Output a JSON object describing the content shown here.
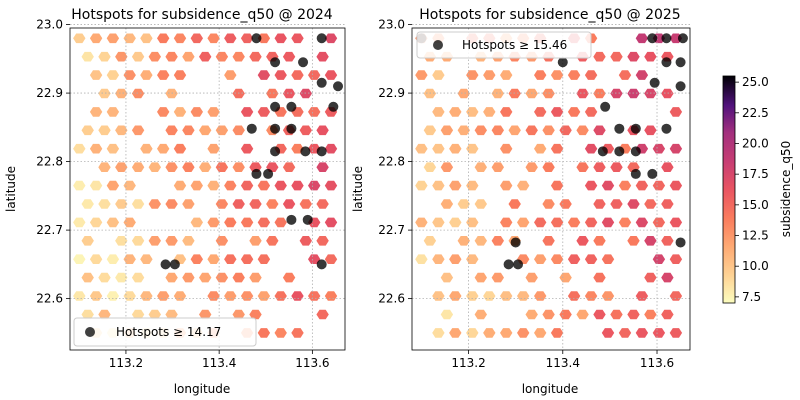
{
  "chart_data": {
    "type": "heatmap",
    "colorbar": {
      "label": "subsidence_q50",
      "range": [
        7.0,
        25.5
      ],
      "ticks": [
        "7.5",
        "10.0",
        "12.5",
        "15.0",
        "17.5",
        "20.0",
        "22.5",
        "25.0"
      ],
      "tick_values": [
        7.5,
        10.0,
        12.5,
        15.0,
        17.5,
        20.0,
        22.5,
        25.0
      ],
      "colormap": "magma_r"
    },
    "panels": [
      {
        "title": "Hotspots for subsidence_q50 @ 2024",
        "xlabel": "longitude",
        "ylabel": "latitude",
        "xlim": [
          113.08,
          113.67
        ],
        "ylim": [
          22.525,
          22.995
        ],
        "x_ticks": [
          "113.2",
          "113.4",
          "113.6"
        ],
        "x_tick_values": [
          113.2,
          113.4,
          113.6
        ],
        "y_ticks": [
          "22.6",
          "22.7",
          "22.8",
          "22.9",
          "23.0"
        ],
        "y_tick_values": [
          22.6,
          22.7,
          22.8,
          22.9,
          23.0
        ],
        "grid": true,
        "legend": {
          "label": "Hotspots ≥ 14.17",
          "position": "lower-left"
        },
        "hotspot_threshold": 14.17,
        "seed": 2024,
        "hotspots": [
          [
            113.48,
            22.98
          ],
          [
            113.62,
            22.98
          ],
          [
            113.52,
            22.945
          ],
          [
            113.58,
            22.945
          ],
          [
            113.62,
            22.915
          ],
          [
            113.655,
            22.91
          ],
          [
            113.52,
            22.88
          ],
          [
            113.555,
            22.88
          ],
          [
            113.645,
            22.88
          ],
          [
            113.47,
            22.848
          ],
          [
            113.52,
            22.848
          ],
          [
            113.555,
            22.848
          ],
          [
            113.52,
            22.815
          ],
          [
            113.585,
            22.815
          ],
          [
            113.62,
            22.815
          ],
          [
            113.48,
            22.782
          ],
          [
            113.505,
            22.782
          ],
          [
            113.555,
            22.715
          ],
          [
            113.59,
            22.715
          ],
          [
            113.285,
            22.65
          ],
          [
            113.305,
            22.65
          ],
          [
            113.62,
            22.65
          ]
        ]
      },
      {
        "title": "Hotspots for subsidence_q50 @ 2025",
        "xlabel": "longitude",
        "ylabel": "latitude",
        "xlim": [
          113.08,
          113.67
        ],
        "ylim": [
          22.525,
          22.995
        ],
        "x_ticks": [
          "113.2",
          "113.4",
          "113.6"
        ],
        "x_tick_values": [
          113.2,
          113.4,
          113.6
        ],
        "y_ticks": [
          "22.6",
          "22.7",
          "22.8",
          "22.9",
          "23.0"
        ],
        "y_tick_values": [
          22.6,
          22.7,
          22.8,
          22.9,
          23.0
        ],
        "grid": true,
        "legend": {
          "label": "Hotspots ≥ 15.46",
          "position": "upper-left"
        },
        "hotspot_threshold": 15.46,
        "seed": 2025,
        "hotspots": [
          [
            113.1,
            22.98
          ],
          [
            113.59,
            22.98
          ],
          [
            113.62,
            22.98
          ],
          [
            113.655,
            22.98
          ],
          [
            113.4,
            22.945
          ],
          [
            113.62,
            22.945
          ],
          [
            113.65,
            22.945
          ],
          [
            113.595,
            22.915
          ],
          [
            113.65,
            22.91
          ],
          [
            113.49,
            22.88
          ],
          [
            113.52,
            22.848
          ],
          [
            113.555,
            22.848
          ],
          [
            113.62,
            22.848
          ],
          [
            113.485,
            22.815
          ],
          [
            113.52,
            22.815
          ],
          [
            113.555,
            22.815
          ],
          [
            113.555,
            22.782
          ],
          [
            113.59,
            22.782
          ],
          [
            113.3,
            22.682
          ],
          [
            113.285,
            22.65
          ],
          [
            113.305,
            22.65
          ],
          [
            113.65,
            22.682
          ]
        ]
      }
    ]
  }
}
